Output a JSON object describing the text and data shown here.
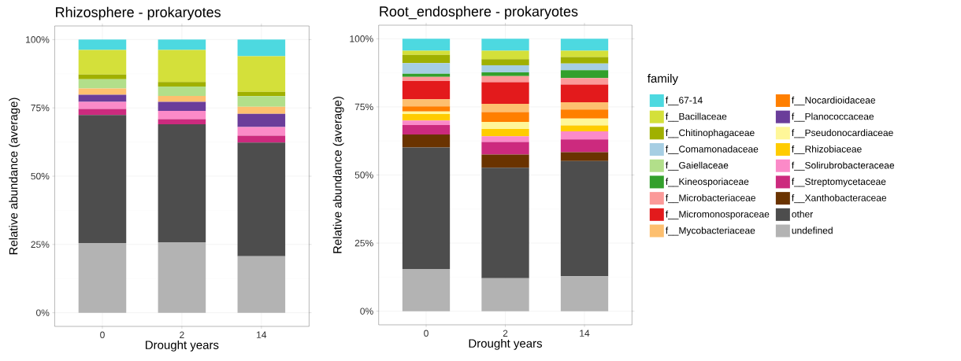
{
  "chart_data": [
    {
      "type": "bar",
      "stacked": true,
      "title": "Rhizosphere - prokaryotes",
      "xlabel": "Drought years",
      "ylabel": "Relative abundance (average)",
      "categories": [
        "0",
        "2",
        "14"
      ],
      "ylim": [
        -5,
        105
      ],
      "yticks": [
        {
          "value": 0,
          "label": "0%"
        },
        {
          "value": 25,
          "label": "25%"
        },
        {
          "value": 50,
          "label": "50%"
        },
        {
          "value": 75,
          "label": "75%"
        },
        {
          "value": 100,
          "label": "100%"
        }
      ],
      "grid": true,
      "legend": false,
      "series": [
        {
          "color": "#b3b3b3",
          "values": [
            25.5,
            25.8,
            20.7
          ]
        },
        {
          "color": "#4d4d4d",
          "values": [
            46.9,
            43.2,
            41.6
          ]
        },
        {
          "color": "#cc2a7e",
          "values": [
            2.2,
            1.9,
            2.5
          ]
        },
        {
          "color": "#fb8ac8",
          "values": [
            2.6,
            3.0,
            3.2
          ]
        },
        {
          "color": "#6a3d9a",
          "values": [
            2.6,
            3.3,
            4.8
          ]
        },
        {
          "color": "#fdbf6f",
          "values": [
            2.3,
            2.2,
            2.6
          ]
        },
        {
          "color": "#b2df8a",
          "values": [
            3.4,
            3.4,
            3.9
          ]
        },
        {
          "color": "#a0b000",
          "values": [
            1.7,
            1.7,
            1.6
          ]
        },
        {
          "color": "#d4e03a",
          "values": [
            9.0,
            11.7,
            13.0
          ]
        },
        {
          "color": "#4dd9e0",
          "values": [
            3.8,
            3.8,
            6.1
          ]
        }
      ]
    },
    {
      "type": "bar",
      "stacked": true,
      "title": "Root_endosphere - prokaryotes",
      "xlabel": "Drought years",
      "ylabel": "Relative abundance (average)",
      "legend_title": "family",
      "categories": [
        "0",
        "2",
        "14"
      ],
      "ylim": [
        -5,
        105
      ],
      "yticks": [
        {
          "value": 0,
          "label": "0%"
        },
        {
          "value": 25,
          "label": "25%"
        },
        {
          "value": 50,
          "label": "50%"
        },
        {
          "value": 75,
          "label": "75%"
        },
        {
          "value": 100,
          "label": "100%"
        }
      ],
      "grid": true,
      "legend": "right",
      "series": [
        {
          "name": "undefined",
          "color": "#b3b3b3",
          "values": [
            15.5,
            12.1,
            12.8
          ]
        },
        {
          "name": "other",
          "color": "#4d4d4d",
          "values": [
            44.6,
            40.6,
            42.3
          ]
        },
        {
          "name": "f__Xanthobacteraceae",
          "color": "#6a3300",
          "values": [
            4.8,
            4.8,
            3.3
          ]
        },
        {
          "name": "f__Streptomycetaceae",
          "color": "#cc2a7e",
          "values": [
            3.4,
            4.6,
            4.7
          ]
        },
        {
          "name": "f__Solirubrobacteraceae",
          "color": "#fb8ac8",
          "values": [
            1.7,
            2.1,
            2.9
          ]
        },
        {
          "name": "f__Rhizobiaceae",
          "color": "#ffcc00",
          "values": [
            2.4,
            2.7,
            2.2
          ]
        },
        {
          "name": "f__Pseudonocardiaceae",
          "color": "#fff799",
          "values": [
            0.9,
            2.6,
            2.5
          ]
        },
        {
          "name": "f__Planococcaceae",
          "color": "#6a3d9a",
          "values": [
            null,
            null,
            null
          ]
        },
        {
          "name": "f__Nocardioidaceae",
          "color": "#ff7f00",
          "values": [
            1.9,
            3.6,
            3.3
          ]
        },
        {
          "name": "f__Mycobacteriaceae",
          "color": "#fdbf6f",
          "values": [
            2.6,
            3.0,
            2.7
          ]
        },
        {
          "name": "f__Micromonosporaceae",
          "color": "#e31a1c",
          "values": [
            6.7,
            8.0,
            6.5
          ]
        },
        {
          "name": "f__Microbacteriaceae",
          "color": "#fb9a99",
          "values": [
            1.5,
            2.2,
            2.4
          ]
        },
        {
          "name": "f__Kineosporiaceae",
          "color": "#33a02c",
          "values": [
            1.2,
            1.4,
            2.9
          ]
        },
        {
          "name": "f__Gaiellaceae",
          "color": "#b2df8a",
          "values": [
            null,
            null,
            null
          ]
        },
        {
          "name": "f__Comamonadaceae",
          "color": "#a6cee3",
          "values": [
            3.9,
            2.6,
            2.4
          ]
        },
        {
          "name": "f__Chitinophagaceae",
          "color": "#a0b000",
          "values": [
            3.0,
            2.2,
            2.4
          ]
        },
        {
          "name": "f__Bacillaceae",
          "color": "#d4e03a",
          "values": [
            1.5,
            3.1,
            2.3
          ]
        },
        {
          "name": "f__67-14",
          "color": "#4dd9e0",
          "values": [
            4.4,
            4.4,
            4.4
          ]
        }
      ]
    }
  ]
}
